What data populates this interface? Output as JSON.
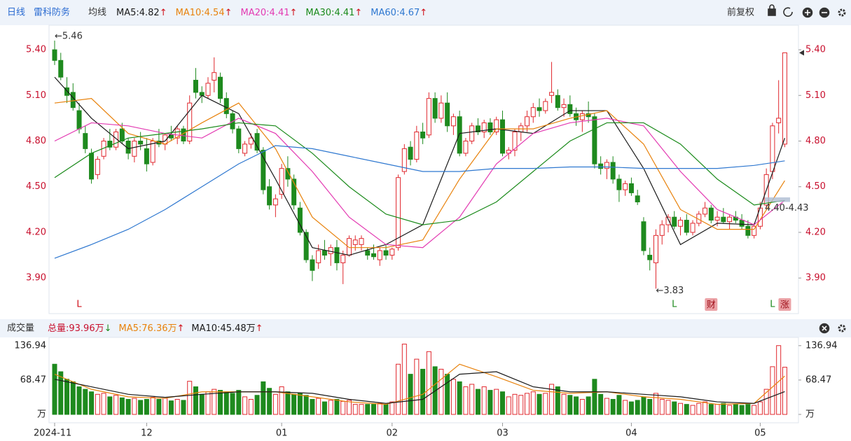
{
  "header": {
    "period": "日线",
    "stock": "雷科防务",
    "ma_label": "均线",
    "adjust": "前复权"
  },
  "chart_data": [
    {
      "type": "candlestick",
      "ylim": [
        3.68,
        5.52
      ],
      "yticks": [
        {
          "value": 3.9,
          "label": "3.90"
        },
        {
          "value": 4.2,
          "label": "4.20"
        },
        {
          "value": 4.5,
          "label": "4.50"
        },
        {
          "value": 4.8,
          "label": "4.80"
        },
        {
          "value": 5.1,
          "label": "5.10"
        },
        {
          "value": 5.4,
          "label": "5.40"
        }
      ],
      "grid": false,
      "up_color": "#e0282e",
      "down_color": "#1e8a1e",
      "candles": [
        [
          5.4,
          5.46,
          5.3,
          5.33
        ],
        [
          5.33,
          5.38,
          5.2,
          5.22
        ],
        [
          5.15,
          5.22,
          5.05,
          5.1
        ],
        [
          5.12,
          5.18,
          5.0,
          5.02
        ],
        [
          5.0,
          5.05,
          4.85,
          4.88
        ],
        [
          4.85,
          4.9,
          4.72,
          4.75
        ],
        [
          4.72,
          4.75,
          4.52,
          4.55
        ],
        [
          4.58,
          4.7,
          4.55,
          4.68
        ],
        [
          4.7,
          4.82,
          4.68,
          4.8
        ],
        [
          4.8,
          4.88,
          4.74,
          4.76
        ],
        [
          4.76,
          4.88,
          4.74,
          4.86
        ],
        [
          4.88,
          4.92,
          4.78,
          4.8
        ],
        [
          4.8,
          4.82,
          4.68,
          4.72
        ],
        [
          4.7,
          4.82,
          4.66,
          4.8
        ],
        [
          4.8,
          4.86,
          4.74,
          4.78
        ],
        [
          4.75,
          4.82,
          4.6,
          4.65
        ],
        [
          4.66,
          4.82,
          4.64,
          4.8
        ],
        [
          4.8,
          4.88,
          4.76,
          4.78
        ],
        [
          4.78,
          4.85,
          4.74,
          4.84
        ],
        [
          4.84,
          4.9,
          4.8,
          4.82
        ],
        [
          4.82,
          4.9,
          4.78,
          4.88
        ],
        [
          4.88,
          4.9,
          4.78,
          4.8
        ],
        [
          4.8,
          5.1,
          4.78,
          5.05
        ],
        [
          5.2,
          5.28,
          5.08,
          5.12
        ],
        [
          5.12,
          5.16,
          5.05,
          5.1
        ],
        [
          5.1,
          5.22,
          5.08,
          5.18
        ],
        [
          5.2,
          5.35,
          5.12,
          5.25
        ],
        [
          5.22,
          5.25,
          5.05,
          5.08
        ],
        [
          5.08,
          5.12,
          4.95,
          4.98
        ],
        [
          4.98,
          5.0,
          4.85,
          4.88
        ],
        [
          4.88,
          4.9,
          4.72,
          4.75
        ],
        [
          4.72,
          4.8,
          4.7,
          4.78
        ],
        [
          4.78,
          4.85,
          4.75,
          4.82
        ],
        [
          4.85,
          4.88,
          4.72,
          4.74
        ],
        [
          4.74,
          4.76,
          4.45,
          4.48
        ],
        [
          4.5,
          4.55,
          4.35,
          4.38
        ],
        [
          4.38,
          4.45,
          4.3,
          4.42
        ],
        [
          4.45,
          4.65,
          4.42,
          4.62
        ],
        [
          4.62,
          4.7,
          4.5,
          4.55
        ],
        [
          4.55,
          4.58,
          4.35,
          4.38
        ],
        [
          4.36,
          4.4,
          4.18,
          4.2
        ],
        [
          4.2,
          4.22,
          4.0,
          4.02
        ],
        [
          4.02,
          4.05,
          3.88,
          3.95
        ],
        [
          4.0,
          4.12,
          3.96,
          4.08
        ],
        [
          4.08,
          4.15,
          4.02,
          4.05
        ],
        [
          4.06,
          4.12,
          3.98,
          4.1
        ],
        [
          4.1,
          4.15,
          3.95,
          4.0
        ],
        [
          4.0,
          4.08,
          3.86,
          4.05
        ],
        [
          4.05,
          4.18,
          4.04,
          4.16
        ],
        [
          4.12,
          4.18,
          4.08,
          4.15
        ],
        [
          4.12,
          4.18,
          4.08,
          4.16
        ],
        [
          4.08,
          4.1,
          4.02,
          4.05
        ],
        [
          4.06,
          4.12,
          4.02,
          4.04
        ],
        [
          4.02,
          4.1,
          3.98,
          4.08
        ],
        [
          4.08,
          4.12,
          4.02,
          4.05
        ],
        [
          4.05,
          4.1,
          4.02,
          4.09
        ],
        [
          4.1,
          4.58,
          4.08,
          4.56
        ],
        [
          4.6,
          4.78,
          4.58,
          4.75
        ],
        [
          4.76,
          4.8,
          4.64,
          4.68
        ],
        [
          4.68,
          4.9,
          4.66,
          4.86
        ],
        [
          4.86,
          4.92,
          4.78,
          4.82
        ],
        [
          4.84,
          5.12,
          4.82,
          5.08
        ],
        [
          5.08,
          5.12,
          4.92,
          4.95
        ],
        [
          4.95,
          5.1,
          4.92,
          5.05
        ],
        [
          5.05,
          5.12,
          4.86,
          4.9
        ],
        [
          4.9,
          4.98,
          4.84,
          4.96
        ],
        [
          4.96,
          5.0,
          4.7,
          4.72
        ],
        [
          4.72,
          4.82,
          4.7,
          4.8
        ],
        [
          4.8,
          4.92,
          4.78,
          4.9
        ],
        [
          4.9,
          4.95,
          4.84,
          4.86
        ],
        [
          4.86,
          4.94,
          4.82,
          4.92
        ],
        [
          4.92,
          4.95,
          4.84,
          4.86
        ],
        [
          4.86,
          4.96,
          4.84,
          4.94
        ],
        [
          4.94,
          5.0,
          4.7,
          4.72
        ],
        [
          4.72,
          4.76,
          4.68,
          4.74
        ],
        [
          4.74,
          4.88,
          4.7,
          4.86
        ],
        [
          4.86,
          4.92,
          4.8,
          4.9
        ],
        [
          4.9,
          5.0,
          4.86,
          4.96
        ],
        [
          4.96,
          5.05,
          4.92,
          5.02
        ],
        [
          5.02,
          5.08,
          4.96,
          5.0
        ],
        [
          5.0,
          5.08,
          4.98,
          5.06
        ],
        [
          5.1,
          5.32,
          5.05,
          5.12
        ],
        [
          5.1,
          5.14,
          5.0,
          5.02
        ],
        [
          5.02,
          5.08,
          4.96,
          5.04
        ],
        [
          5.04,
          5.1,
          4.96,
          4.98
        ],
        [
          4.98,
          5.02,
          4.9,
          4.94
        ],
        [
          4.94,
          5.0,
          4.86,
          4.98
        ],
        [
          4.98,
          5.06,
          4.92,
          4.96
        ],
        [
          4.96,
          4.98,
          4.62,
          4.65
        ],
        [
          4.65,
          4.7,
          4.58,
          4.62
        ],
        [
          4.62,
          4.68,
          4.55,
          4.66
        ],
        [
          4.66,
          4.7,
          4.52,
          4.55
        ],
        [
          4.55,
          4.58,
          4.4,
          4.48
        ],
        [
          4.48,
          4.54,
          4.44,
          4.52
        ],
        [
          4.52,
          4.56,
          4.44,
          4.46
        ],
        [
          4.44,
          4.48,
          4.38,
          4.4
        ],
        [
          4.27,
          4.3,
          4.05,
          4.08
        ],
        [
          4.05,
          4.1,
          3.95,
          4.02
        ],
        [
          4.0,
          4.22,
          3.83,
          4.18
        ],
        [
          4.18,
          4.28,
          4.12,
          4.25
        ],
        [
          4.25,
          4.32,
          4.2,
          4.3
        ],
        [
          4.3,
          4.34,
          4.22,
          4.24
        ],
        [
          4.24,
          4.3,
          4.18,
          4.28
        ],
        [
          4.28,
          4.32,
          4.18,
          4.2
        ],
        [
          4.2,
          4.28,
          4.18,
          4.26
        ],
        [
          4.26,
          4.34,
          4.24,
          4.32
        ],
        [
          4.32,
          4.4,
          4.3,
          4.36
        ],
        [
          4.36,
          4.38,
          4.26,
          4.28
        ],
        [
          4.28,
          4.34,
          4.24,
          4.3
        ],
        [
          4.3,
          4.36,
          4.26,
          4.27
        ],
        [
          4.27,
          4.32,
          4.22,
          4.3
        ],
        [
          4.3,
          4.34,
          4.26,
          4.28
        ],
        [
          4.28,
          4.32,
          4.22,
          4.24
        ],
        [
          4.24,
          4.28,
          4.16,
          4.18
        ],
        [
          4.18,
          4.26,
          4.16,
          4.24
        ],
        [
          4.24,
          4.4,
          4.22,
          4.36
        ],
        [
          4.38,
          4.62,
          4.36,
          4.58
        ],
        [
          4.6,
          4.92,
          4.55,
          4.9
        ],
        [
          4.92,
          5.2,
          4.85,
          4.95
        ],
        [
          4.78,
          5.38,
          4.76,
          5.38
        ]
      ],
      "ma_index": [
        0,
        6,
        12,
        18,
        24,
        30,
        36,
        42,
        48,
        54,
        60,
        66,
        72,
        78,
        84,
        90,
        96,
        102,
        108,
        114,
        119
      ],
      "lines": [
        {
          "label": "MA5:4.82",
          "arrow": "↑",
          "color": "#1a1a1a",
          "values": [
            5.22,
            4.95,
            4.75,
            4.8,
            5.1,
            4.98,
            4.55,
            4.1,
            4.05,
            4.12,
            4.25,
            4.85,
            4.88,
            4.85,
            5.0,
            5.0,
            4.62,
            4.12,
            4.26,
            4.25,
            4.82
          ]
        },
        {
          "label": "MA10:4.54",
          "arrow": "↑",
          "color": "#e8820c",
          "values": [
            5.05,
            5.08,
            4.85,
            4.78,
            4.92,
            5.05,
            4.75,
            4.3,
            4.1,
            4.1,
            4.15,
            4.55,
            4.88,
            4.88,
            4.95,
            5.0,
            4.78,
            4.35,
            4.22,
            4.22,
            4.54
          ]
        },
        {
          "label": "MA20:4.41",
          "arrow": "↑",
          "color": "#e33ab2",
          "values": [
            4.8,
            4.92,
            4.9,
            4.85,
            4.82,
            4.95,
            4.85,
            4.6,
            4.3,
            4.12,
            4.1,
            4.3,
            4.65,
            4.85,
            4.92,
            4.95,
            4.9,
            4.6,
            4.35,
            4.25,
            4.41
          ]
        },
        {
          "label": "MA30:4.41",
          "arrow": "↑",
          "color": "#1a8a1a",
          "values": [
            4.56,
            4.72,
            4.82,
            4.85,
            4.88,
            4.92,
            4.9,
            4.72,
            4.5,
            4.32,
            4.25,
            4.28,
            4.4,
            4.6,
            4.8,
            4.92,
            4.92,
            4.78,
            4.55,
            4.38,
            4.41
          ]
        },
        {
          "label": "MA60:4.67",
          "arrow": "↑",
          "color": "#2f78d0",
          "values": [
            4.03,
            4.12,
            4.22,
            4.35,
            4.5,
            4.65,
            4.77,
            4.75,
            4.7,
            4.65,
            4.6,
            4.6,
            4.62,
            4.62,
            4.63,
            4.63,
            4.62,
            4.62,
            4.62,
            4.64,
            4.67
          ]
        }
      ],
      "annotations": [
        {
          "text": "←5.46",
          "index": 0,
          "value": 5.46
        },
        {
          "text": "←3.83",
          "index": 98,
          "value": 3.83
        }
      ],
      "range_annotation": {
        "text": "4.40-4.43",
        "range": [
          4.4,
          4.43
        ]
      },
      "markers": [
        {
          "text": "L",
          "index": 4,
          "color": "#d0101a"
        },
        {
          "text": "L",
          "index": 101,
          "color": "#1e8a1e"
        },
        {
          "text": "L",
          "index": 117,
          "color": "#1e8a1e"
        }
      ],
      "badges": [
        {
          "text": "财",
          "index": 107
        },
        {
          "text": "涨",
          "index": 119
        }
      ]
    },
    {
      "type": "bar",
      "title": "成交量",
      "total": {
        "text": "总量:93.96万",
        "arrow": "↓"
      },
      "ylim": [
        0,
        145
      ],
      "yticks": [
        {
          "value": 0,
          "label": "万"
        },
        68.47,
        136.94
      ],
      "xticks": [
        {
          "value": 0,
          "label": "2024-11"
        },
        {
          "value": 15,
          "label": "12"
        },
        {
          "value": 37,
          "label": "01"
        },
        {
          "value": 55,
          "label": "02"
        },
        {
          "value": 73,
          "label": "03"
        },
        {
          "value": 94,
          "label": "04"
        },
        {
          "value": 115,
          "label": "05"
        }
      ],
      "values": [
        100,
        85,
        70,
        65,
        55,
        50,
        45,
        40,
        42,
        35,
        38,
        33,
        30,
        32,
        28,
        30,
        34,
        30,
        32,
        27,
        30,
        28,
        66,
        55,
        40,
        45,
        50,
        48,
        45,
        42,
        48,
        35,
        30,
        38,
        65,
        52,
        40,
        55,
        45,
        40,
        42,
        38,
        30,
        32,
        25,
        28,
        30,
        26,
        28,
        20,
        20,
        20,
        20,
        22,
        20,
        25,
        100,
        140,
        80,
        110,
        90,
        125,
        95,
        90,
        80,
        70,
        65,
        55,
        60,
        50,
        55,
        48,
        50,
        45,
        35,
        40,
        38,
        42,
        45,
        40,
        42,
        60,
        55,
        40,
        38,
        35,
        30,
        35,
        70,
        40,
        32,
        30,
        38,
        28,
        25,
        28,
        35,
        30,
        42,
        30,
        28,
        25,
        22,
        20,
        18,
        22,
        25,
        20,
        20,
        22,
        18,
        20,
        18,
        20,
        18,
        25,
        50,
        95,
        137,
        93.96
      ],
      "lines": [
        {
          "label": "MA5:76.36万",
          "arrow": "↑",
          "color": "#e8820c",
          "values": [
            80,
            50,
            35,
            32,
            45,
            45,
            45,
            35,
            25,
            20,
            40,
            100,
            75,
            48,
            42,
            45,
            35,
            30,
            20,
            22,
            76.36
          ]
        },
        {
          "label": "MA10:45.48万",
          "arrow": "↑",
          "color": "#1a1a1a",
          "values": [
            70,
            55,
            40,
            34,
            40,
            45,
            45,
            42,
            30,
            22,
            30,
            80,
            85,
            55,
            45,
            45,
            40,
            35,
            25,
            22,
            45.48
          ]
        }
      ]
    }
  ]
}
